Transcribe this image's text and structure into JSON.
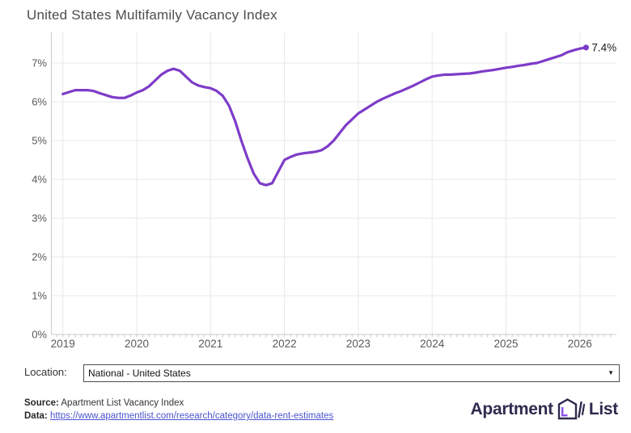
{
  "chart_data": {
    "type": "line",
    "title": "United States Multifamily Vacancy Index",
    "series_name": "Multifamily Vacancy Index",
    "x_start": "2019-01",
    "x_end": "2026-02",
    "x_ticks": [
      "2019",
      "2020",
      "2021",
      "2022",
      "2023",
      "2024",
      "2025",
      "2026"
    ],
    "y_ticks": [
      "0%",
      "1%",
      "2%",
      "3%",
      "4%",
      "5%",
      "6%",
      "7%"
    ],
    "ylim": [
      0,
      7.8
    ],
    "grid": true,
    "line_color": "#7d3cc8",
    "end_label": "7.4%",
    "values": [
      6.2,
      6.25,
      6.3,
      6.3,
      6.3,
      6.28,
      6.22,
      6.17,
      6.12,
      6.1,
      6.1,
      6.16,
      6.24,
      6.3,
      6.4,
      6.55,
      6.7,
      6.8,
      6.85,
      6.8,
      6.65,
      6.5,
      6.42,
      6.38,
      6.35,
      6.28,
      6.15,
      5.9,
      5.5,
      5.0,
      4.55,
      4.15,
      3.9,
      3.85,
      3.9,
      4.2,
      4.5,
      4.58,
      4.64,
      4.67,
      4.69,
      4.71,
      4.75,
      4.85,
      5.0,
      5.2,
      5.4,
      5.55,
      5.7,
      5.8,
      5.9,
      6.0,
      6.08,
      6.15,
      6.22,
      6.28,
      6.35,
      6.42,
      6.5,
      6.58,
      6.65,
      6.68,
      6.7,
      6.7,
      6.71,
      6.72,
      6.73,
      6.75,
      6.78,
      6.8,
      6.82,
      6.85,
      6.88,
      6.9,
      6.93,
      6.95,
      6.98,
      7.0,
      7.05,
      7.1,
      7.15,
      7.2,
      7.28,
      7.33,
      7.37,
      7.4
    ]
  },
  "location": {
    "label": "Location:",
    "selected": "National - United States"
  },
  "footer": {
    "source_label": "Source:",
    "source_text": "Apartment List Vacancy Index",
    "data_label": "Data:",
    "data_link": "https://www.apartmentlist.com/research/category/data-rent-estimates"
  },
  "logo": {
    "part1": "Apartment",
    "part2": "List",
    "text_color": "#302a4e",
    "accent_color": "#8b4fe8"
  }
}
